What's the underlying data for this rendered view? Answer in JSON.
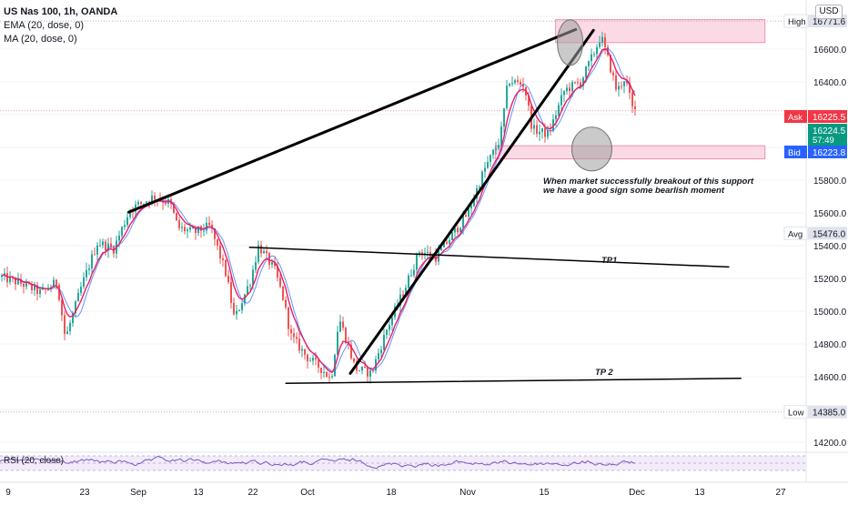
{
  "legend": {
    "symbol": "US Nas 100, 1h, OANDA",
    "ema": "EMA (20, dose, 0)",
    "ma": "MA (20, dose, 0)"
  },
  "currency": "USD",
  "price_labels": {
    "high_tag": "High",
    "high_value": "16771.6",
    "ask_tag": "Ask",
    "ask_value": "16225.5",
    "last_value": "16224.5",
    "countdown": "57:49",
    "bid_tag": "Bid",
    "bid_value": "16223.8",
    "avg_tag": "Avg",
    "avg_value": "15476.0",
    "low_tag": "Low",
    "low_value": "14385.0"
  },
  "annotations": {
    "note_line1": "When market successfully breakout of this support",
    "note_line2": "we have a good sign some bearlish moment",
    "tp1": "TP1",
    "tp2": "TP 2"
  },
  "rsi_label": "RSI (20, close)",
  "colors": {
    "candle_up": "#26a69a",
    "candle_down": "#ef5350",
    "ema": "#e91e63",
    "ma": "#2962ff",
    "rsi": "#7e57c2",
    "zone": "#f8bbd0",
    "ask": "#f23645",
    "bid": "#2962ff",
    "last": "#089981"
  },
  "chart_data": {
    "type": "candlestick",
    "ylim": [
      14150,
      16900
    ],
    "y_ticks": [
      14200,
      14400,
      14600,
      14800,
      15000,
      15200,
      15400,
      15600,
      15800,
      16000,
      16200,
      16400,
      16600,
      16800
    ],
    "y_tick_labels": [
      "14200.0",
      "",
      "14600.0",
      "14800.0",
      "15000.0",
      "15200.0",
      "15400.0",
      "15600.0",
      "15800.0",
      "16000.0",
      "",
      "16400.0",
      "16600.0",
      ""
    ],
    "x_ticks": [
      "9",
      "23",
      "Sep",
      "13",
      "22",
      "Oct",
      "18",
      "Nov",
      "15",
      "Dec",
      "13",
      "27"
    ],
    "price_path": [
      [
        0,
        15210
      ],
      [
        0.03,
        15160
      ],
      [
        0.05,
        15110
      ],
      [
        0.07,
        15180
      ],
      [
        0.08,
        14830
      ],
      [
        0.1,
        15150
      ],
      [
        0.12,
        15420
      ],
      [
        0.14,
        15380
      ],
      [
        0.16,
        15620
      ],
      [
        0.19,
        15700
      ],
      [
        0.21,
        15660
      ],
      [
        0.22,
        15510
      ],
      [
        0.24,
        15480
      ],
      [
        0.26,
        15520
      ],
      [
        0.28,
        15220
      ],
      [
        0.29,
        14950
      ],
      [
        0.31,
        15190
      ],
      [
        0.32,
        15400
      ],
      [
        0.34,
        15250
      ],
      [
        0.35,
        15090
      ],
      [
        0.36,
        14850
      ],
      [
        0.38,
        14720
      ],
      [
        0.4,
        14640
      ],
      [
        0.41,
        14580
      ],
      [
        0.42,
        14960
      ],
      [
        0.43,
        14810
      ],
      [
        0.44,
        14650
      ],
      [
        0.46,
        14620
      ],
      [
        0.48,
        14900
      ],
      [
        0.5,
        15120
      ],
      [
        0.52,
        15370
      ],
      [
        0.54,
        15330
      ],
      [
        0.56,
        15460
      ],
      [
        0.58,
        15600
      ],
      [
        0.6,
        15860
      ],
      [
        0.62,
        16050
      ],
      [
        0.63,
        16410
      ],
      [
        0.65,
        16380
      ],
      [
        0.66,
        16110
      ],
      [
        0.68,
        16080
      ],
      [
        0.7,
        16350
      ],
      [
        0.72,
        16400
      ],
      [
        0.735,
        16560
      ],
      [
        0.745,
        16680
      ],
      [
        0.755,
        16520
      ],
      [
        0.765,
        16340
      ],
      [
        0.775,
        16430
      ],
      [
        0.785,
        16220
      ],
      [
        0.79,
        16225
      ]
    ],
    "price_high": 16771.6,
    "price_low": 14385.0,
    "average": 15476.0,
    "ask": 16225.5,
    "last": 16224.5,
    "bid": 16223.8,
    "lines": [
      {
        "name": "upper trendline",
        "from": [
          0.16,
          15605
        ],
        "to": [
          0.715,
          16720
        ]
      },
      {
        "name": "lower trendline",
        "from": [
          0.435,
          14620
        ],
        "to": [
          0.737,
          16715
        ]
      },
      {
        "name": "TP1",
        "from": [
          0.31,
          15390
        ],
        "to": [
          0.905,
          15270
        ]
      },
      {
        "name": "TP 2",
        "from": [
          0.355,
          14560
        ],
        "to": [
          0.92,
          14590
        ]
      }
    ],
    "zones": [
      {
        "name": "high resistance zone",
        "x": [
          0.69,
          0.95
        ],
        "y": [
          16640,
          16780
        ]
      },
      {
        "name": "support zone",
        "x": [
          0.615,
          0.95
        ],
        "y": [
          15930,
          16010
        ]
      }
    ]
  }
}
